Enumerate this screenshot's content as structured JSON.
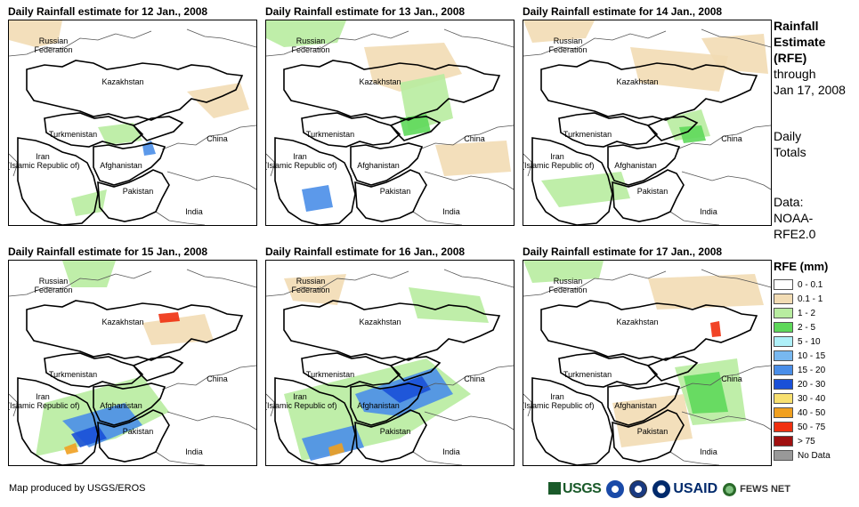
{
  "panels": [
    {
      "title": "Daily Rainfall estimate for 12 Jan., 2008"
    },
    {
      "title": "Daily Rainfall estimate for 13 Jan., 2008"
    },
    {
      "title": "Daily Rainfall estimate for 14 Jan., 2008"
    },
    {
      "title": "Daily Rainfall estimate for 15 Jan., 2008"
    },
    {
      "title": "Daily Rainfall estimate for 16 Jan., 2008"
    },
    {
      "title": "Daily Rainfall estimate for 17 Jan., 2008"
    }
  ],
  "map_labels": {
    "russia": "Russian\nFederation",
    "kazakhstan": "Kazakhstan",
    "turkmenistan": "Turkmenistan",
    "iran": "Iran\n(Islamic Republic of)",
    "afghanistan": "Afghanistan",
    "pakistan": "Pakistan",
    "china": "China",
    "india": "India"
  },
  "sidebar": {
    "title_line1": "Rainfall",
    "title_line2": "Estimate",
    "title_line3": "(RFE)",
    "through": "through",
    "date": "Jan 17, 2008",
    "totals_line1": "Daily",
    "totals_line2": "Totals",
    "data_line1": "Data:",
    "data_line2": "NOAA-",
    "data_line3": "RFE2.0"
  },
  "legend": {
    "title": "RFE (mm)",
    "items": [
      {
        "label": "0 - 0.1",
        "color": "#ffffff"
      },
      {
        "label": "0.1 - 1",
        "color": "#f2dcb4"
      },
      {
        "label": "1 - 2",
        "color": "#b8eca0"
      },
      {
        "label": "2 - 5",
        "color": "#5ed85a"
      },
      {
        "label": "5 - 10",
        "color": "#aef0f8"
      },
      {
        "label": "10 - 15",
        "color": "#78b8f0"
      },
      {
        "label": "15 - 20",
        "color": "#4a8ee8"
      },
      {
        "label": "20 - 30",
        "color": "#1a50d8"
      },
      {
        "label": "30 - 40",
        "color": "#f8e070"
      },
      {
        "label": "40 - 50",
        "color": "#f0a020"
      },
      {
        "label": "50 - 75",
        "color": "#f03010"
      },
      {
        "label": "> 75",
        "color": "#a01010"
      },
      {
        "label": "No Data",
        "color": "#999999"
      }
    ]
  },
  "footer": {
    "credit": "Map produced by USGS/EROS",
    "logo_usgs": "USGS",
    "logo_usaid": "USAID",
    "logo_fews": "FEWS NET"
  }
}
